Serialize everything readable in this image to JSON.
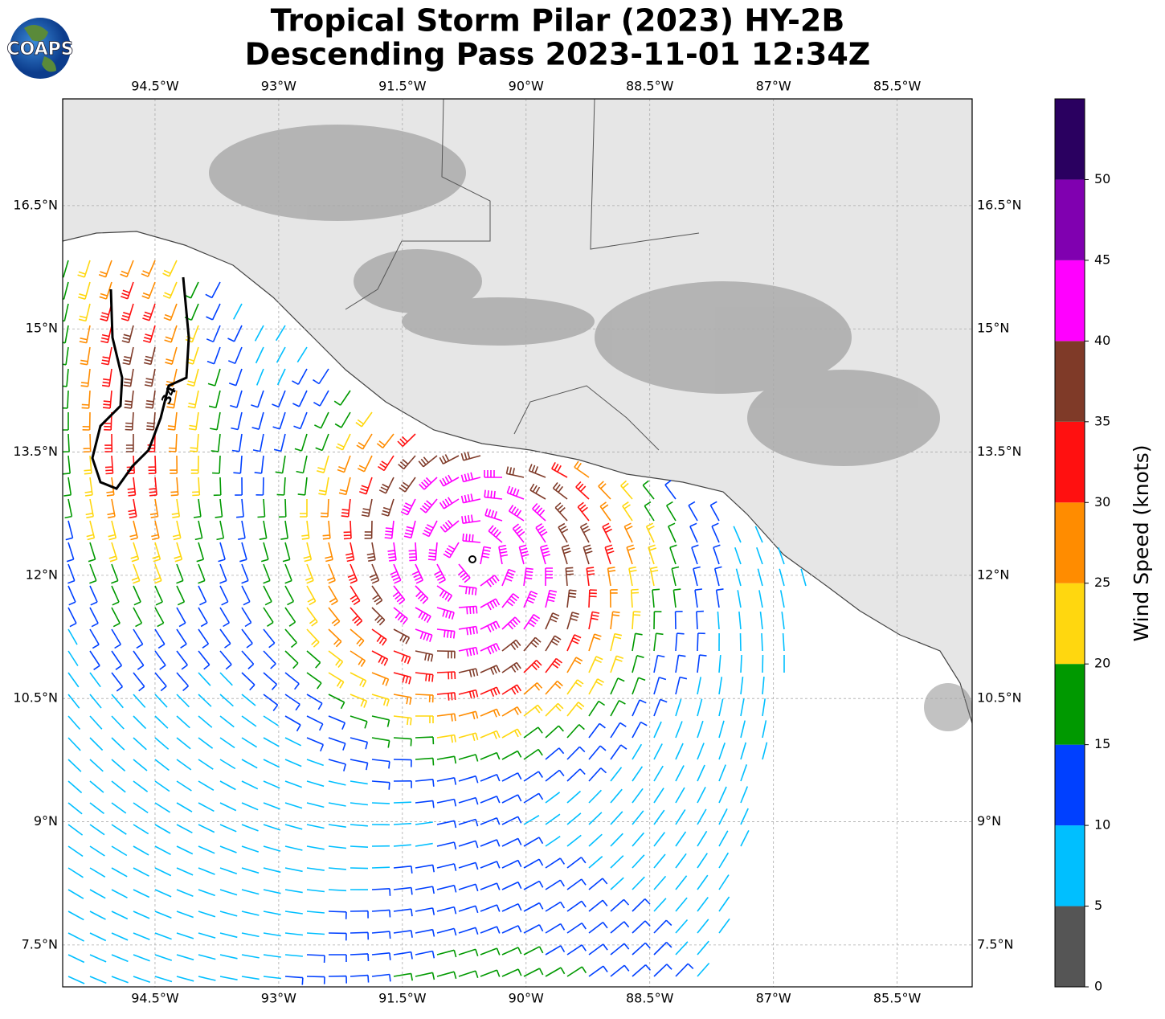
{
  "map": {
    "logo": "COAPS",
    "title_lines": [
      "Tropical Storm Pilar (2023) HY-2B",
      "Descending Pass 2023-11-01 12:34Z"
    ],
    "xlim": [
      -95.62,
      -84.59
    ],
    "ylim": [
      6.99,
      17.8
    ],
    "xticks": [
      {
        "value": -94.5,
        "label": "94.5°W"
      },
      {
        "value": -93,
        "label": "93°W"
      },
      {
        "value": -91.5,
        "label": "91.5°W"
      },
      {
        "value": -90,
        "label": "90°W"
      },
      {
        "value": -88.5,
        "label": "88.5°W"
      },
      {
        "value": -87,
        "label": "87°W"
      },
      {
        "value": -85.5,
        "label": "85.5°W"
      }
    ],
    "yticks": [
      {
        "value": 7.5,
        "label": "7.5°N"
      },
      {
        "value": 9,
        "label": "9°N"
      },
      {
        "value": 10.5,
        "label": "10.5°N"
      },
      {
        "value": 12,
        "label": "12°N"
      },
      {
        "value": 13.5,
        "label": "13.5°N"
      },
      {
        "value": 15,
        "label": "15°N"
      },
      {
        "value": 16.5,
        "label": "16.5°N"
      }
    ],
    "contour_label": "34",
    "colorbar": {
      "label": "Wind Speed (knots)",
      "lim": [
        0,
        55
      ],
      "ticks": [
        0,
        5,
        10,
        15,
        20,
        25,
        30,
        35,
        40,
        45,
        50
      ],
      "colors": [
        "#555555",
        "#00bfff",
        "#0040ff",
        "#009900",
        "#ffd70f",
        "#ff8c00",
        "#ff1010",
        "#7f3a28",
        "#ff00ff",
        "#8000b0",
        "#2a0060"
      ]
    }
  }
}
